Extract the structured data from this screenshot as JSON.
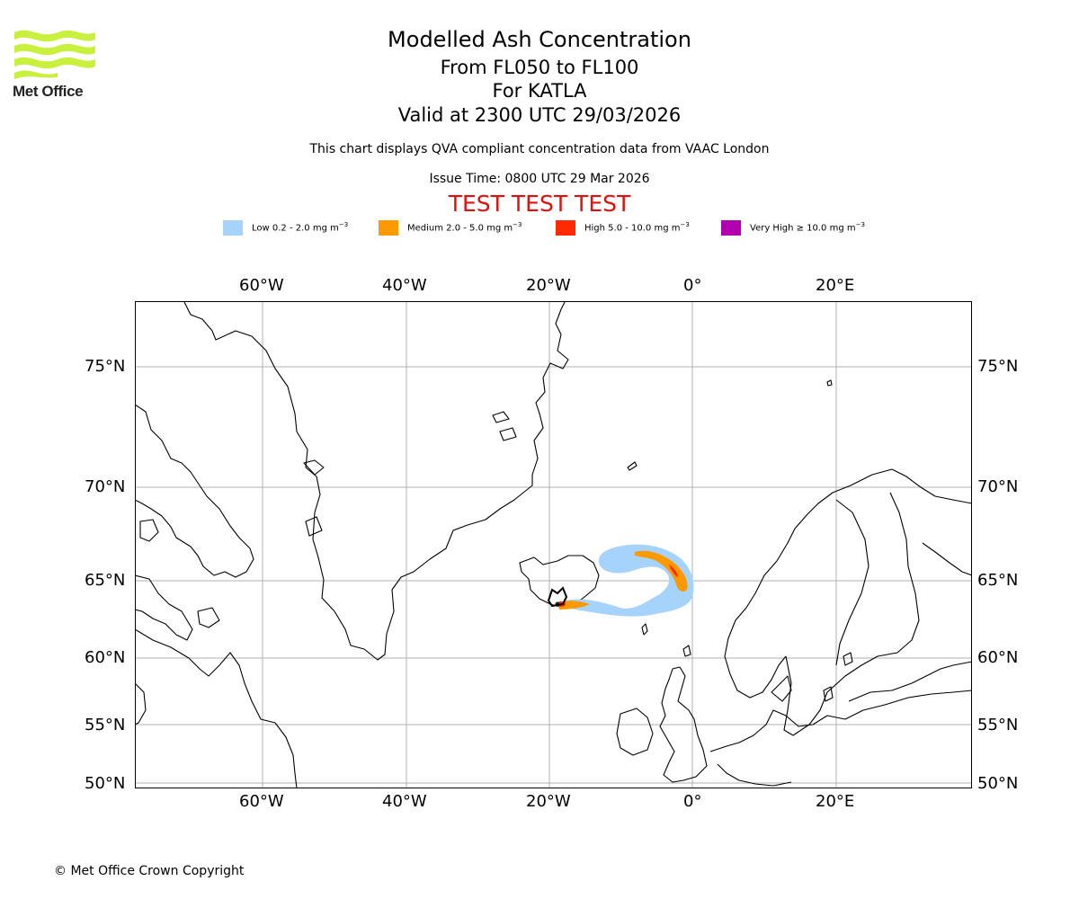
{
  "header": {
    "title": "Modelled Ash Concentration",
    "levels": "From FL050 to FL100",
    "volcano": "For KATLA",
    "valid": "Valid at 2300 UTC 29/03/2026",
    "description": "This chart displays QVA compliant concentration data from VAAC London",
    "issue": "Issue Time: 0800 UTC 29 Mar 2026",
    "test_banner": "TEST TEST TEST"
  },
  "logo": {
    "text": "Met Office",
    "color": "#c8f03c"
  },
  "legend": [
    {
      "label": "Low 0.2 - 2.0 mg m",
      "exp": "−3",
      "color": "#a6d3fb"
    },
    {
      "label": "Medium 2.0 - 5.0 mg m",
      "exp": "−3",
      "color": "#ff9900"
    },
    {
      "label": "High 5.0 - 10.0 mg m",
      "exp": "−3",
      "color": "#ff2a00"
    },
    {
      "label": "Very High ≥ 10.0 mg m",
      "exp": "−3",
      "color": "#b000b0"
    }
  ],
  "axes": {
    "lon_ticks": [
      "60°W",
      "40°W",
      "20°W",
      "0°",
      "20°E"
    ],
    "lat_ticks": [
      "75°N",
      "70°N",
      "65°N",
      "60°N",
      "55°N",
      "50°N"
    ]
  },
  "map": {
    "region": "North Atlantic / Iceland / Northern Europe",
    "volcano_location": "Katla, Iceland",
    "gridline_color": "#b0b0b0"
  },
  "footer": {
    "copyright": "© Met Office Crown Copyright"
  }
}
